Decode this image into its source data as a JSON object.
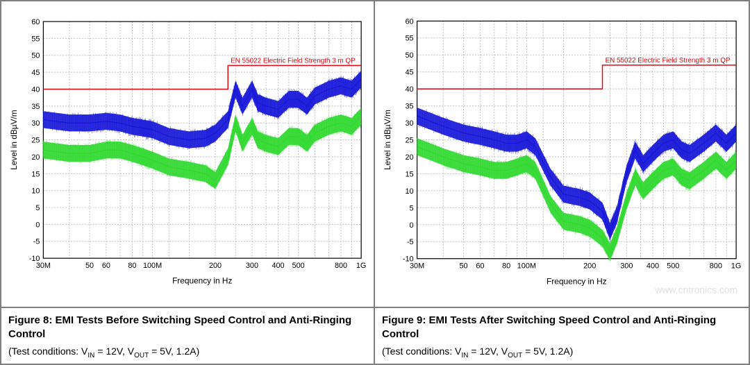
{
  "watermark": "www.cntronics.com",
  "panels": [
    {
      "id": "fig8",
      "caption_title": "Figure 8: EMI Tests Before Switching Speed Control and Anti-Ringing Control",
      "caption_cond_prefix": "(Test conditions: V",
      "caption_cond_sub1": "IN",
      "caption_cond_mid": " = 12V, V",
      "caption_cond_sub2": "OUT",
      "caption_cond_suffix": " = 5V, 1.2A)",
      "chart": {
        "type": "line",
        "xlabel": "Frequency in Hz",
        "ylabel": "Level in dBµV/m",
        "x_log": true,
        "xlim_hz": [
          30000000,
          1000000000
        ],
        "ylim": [
          -10,
          60
        ],
        "ytick_step": 5,
        "xtick_hz": [
          30000000,
          50000000,
          60000000,
          80000000,
          100000000,
          200000000,
          300000000,
          400000000,
          500000000,
          800000000,
          1000000000
        ],
        "xtick_lbl": [
          "30M",
          "50",
          "60",
          "80",
          "100M",
          "200",
          "300",
          "400",
          "500",
          "800",
          "1G"
        ],
        "background_color": "#ffffff",
        "grid_color": "#bfbfbf",
        "limit": {
          "label": "EN 55022 Electric Field Strength 3 m QP",
          "color": "#e30613",
          "points_hz_db": [
            [
              30000000,
              40
            ],
            [
              230000000,
              40
            ],
            [
              230000000,
              47
            ],
            [
              1000000000,
              47
            ]
          ]
        },
        "series": [
          {
            "name": "blue",
            "color": "#1616d8",
            "center_hz_db": [
              [
                30000000,
                31
              ],
              [
                40000000,
                30
              ],
              [
                50000000,
                30
              ],
              [
                60000000,
                30.5
              ],
              [
                70000000,
                30
              ],
              [
                80000000,
                29
              ],
              [
                90000000,
                28.5
              ],
              [
                100000000,
                28
              ],
              [
                120000000,
                26
              ],
              [
                150000000,
                25
              ],
              [
                180000000,
                25.5
              ],
              [
                200000000,
                27
              ],
              [
                230000000,
                31
              ],
              [
                250000000,
                40
              ],
              [
                270000000,
                35
              ],
              [
                300000000,
                40
              ],
              [
                320000000,
                36
              ],
              [
                350000000,
                35
              ],
              [
                400000000,
                34
              ],
              [
                450000000,
                37
              ],
              [
                500000000,
                37
              ],
              [
                550000000,
                35
              ],
              [
                600000000,
                38
              ],
              [
                700000000,
                40
              ],
              [
                800000000,
                41
              ],
              [
                900000000,
                40
              ],
              [
                1000000000,
                43
              ]
            ],
            "band_db": 5
          },
          {
            "name": "green",
            "color": "#2fd82f",
            "center_hz_db": [
              [
                30000000,
                22
              ],
              [
                40000000,
                21
              ],
              [
                50000000,
                21
              ],
              [
                60000000,
                22
              ],
              [
                70000000,
                22
              ],
              [
                80000000,
                21
              ],
              [
                90000000,
                20
              ],
              [
                100000000,
                19
              ],
              [
                120000000,
                17
              ],
              [
                150000000,
                16
              ],
              [
                180000000,
                15
              ],
              [
                200000000,
                13
              ],
              [
                230000000,
                20
              ],
              [
                250000000,
                30
              ],
              [
                270000000,
                24
              ],
              [
                300000000,
                29
              ],
              [
                320000000,
                25
              ],
              [
                350000000,
                24
              ],
              [
                400000000,
                23
              ],
              [
                450000000,
                26
              ],
              [
                500000000,
                26
              ],
              [
                550000000,
                24
              ],
              [
                600000000,
                27
              ],
              [
                700000000,
                29
              ],
              [
                800000000,
                30
              ],
              [
                900000000,
                29
              ],
              [
                1000000000,
                32
              ]
            ],
            "band_db": 5
          }
        ]
      }
    },
    {
      "id": "fig9",
      "caption_title": "Figure 9: EMI Tests After Switching Speed Control and Anti-Ringing Control",
      "caption_cond_prefix": "(Test conditions: V",
      "caption_cond_sub1": "IN",
      "caption_cond_mid": " = 12V, V",
      "caption_cond_sub2": "OUT",
      "caption_cond_suffix": " = 5V, 1.2A)",
      "chart": {
        "type": "line",
        "xlabel": "Frequency in Hz",
        "ylabel": "Level in dBµV/m",
        "x_log": true,
        "xlim_hz": [
          30000000,
          1000000000
        ],
        "ylim": [
          -10,
          60
        ],
        "ytick_step": 5,
        "xtick_hz": [
          30000000,
          50000000,
          60000000,
          80000000,
          100000000,
          200000000,
          300000000,
          400000000,
          500000000,
          800000000,
          1000000000
        ],
        "xtick_lbl": [
          "30M",
          "50",
          "60",
          "80",
          "100M",
          "200",
          "300",
          "400",
          "500",
          "800",
          "1G"
        ],
        "background_color": "#ffffff",
        "grid_color": "#bfbfbf",
        "limit": {
          "label": "EN 55022 Electric Field Strength 3 m QP",
          "color": "#e30613",
          "points_hz_db": [
            [
              30000000,
              40
            ],
            [
              230000000,
              40
            ],
            [
              230000000,
              47
            ],
            [
              1000000000,
              47
            ]
          ]
        },
        "series": [
          {
            "name": "blue",
            "color": "#1616d8",
            "center_hz_db": [
              [
                30000000,
                32
              ],
              [
                40000000,
                29
              ],
              [
                50000000,
                27
              ],
              [
                60000000,
                26
              ],
              [
                70000000,
                25
              ],
              [
                80000000,
                24
              ],
              [
                90000000,
                24
              ],
              [
                100000000,
                25
              ],
              [
                110000000,
                23
              ],
              [
                130000000,
                14
              ],
              [
                150000000,
                9
              ],
              [
                180000000,
                8
              ],
              [
                200000000,
                7
              ],
              [
                230000000,
                4
              ],
              [
                250000000,
                -2
              ],
              [
                270000000,
                3
              ],
              [
                300000000,
                15
              ],
              [
                330000000,
                22
              ],
              [
                360000000,
                18
              ],
              [
                400000000,
                21
              ],
              [
                450000000,
                24
              ],
              [
                500000000,
                25
              ],
              [
                550000000,
                22
              ],
              [
                600000000,
                21
              ],
              [
                700000000,
                24
              ],
              [
                800000000,
                27
              ],
              [
                900000000,
                24
              ],
              [
                1000000000,
                27
              ]
            ],
            "band_db": 5
          },
          {
            "name": "green",
            "color": "#2fd82f",
            "center_hz_db": [
              [
                30000000,
                23
              ],
              [
                40000000,
                20
              ],
              [
                50000000,
                18
              ],
              [
                60000000,
                17
              ],
              [
                70000000,
                16
              ],
              [
                80000000,
                16
              ],
              [
                90000000,
                17
              ],
              [
                100000000,
                18
              ],
              [
                110000000,
                16
              ],
              [
                130000000,
                6
              ],
              [
                150000000,
                1
              ],
              [
                180000000,
                0
              ],
              [
                200000000,
                -1
              ],
              [
                230000000,
                -4
              ],
              [
                250000000,
                -8
              ],
              [
                270000000,
                -3
              ],
              [
                300000000,
                7
              ],
              [
                330000000,
                14
              ],
              [
                360000000,
                10
              ],
              [
                400000000,
                13
              ],
              [
                450000000,
                16
              ],
              [
                500000000,
                17
              ],
              [
                550000000,
                14
              ],
              [
                600000000,
                13
              ],
              [
                700000000,
                16
              ],
              [
                800000000,
                19
              ],
              [
                900000000,
                16
              ],
              [
                1000000000,
                19
              ]
            ],
            "band_db": 5
          }
        ]
      }
    }
  ]
}
